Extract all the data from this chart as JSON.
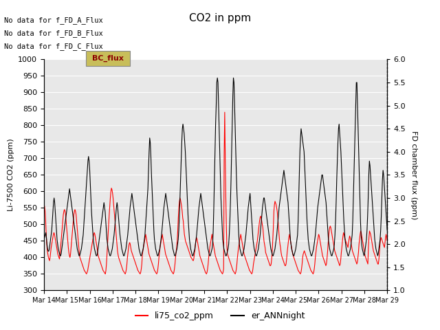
{
  "title": "CO2 in ppm",
  "ylabel_left": "Li-7500 CO2 (ppm)",
  "ylabel_right": "FD chamber flux (ppm)",
  "ylim_left": [
    300,
    1000
  ],
  "ylim_right": [
    1.0,
    6.0
  ],
  "background_color": "#e8e8e8",
  "no_data_texts": [
    "No data for f_FD_A_Flux",
    "No data for f_FD_B_Flux",
    "No data for f_FD_C_Flux"
  ],
  "legend_bc_label": "BC_flux",
  "legend_entries": [
    {
      "label": "li75_co2_ppm",
      "color": "red",
      "lw": 1.0
    },
    {
      "label": "er_ANNnight",
      "color": "black",
      "lw": 1.0
    }
  ],
  "xtick_labels": [
    "Mar 14",
    "Mar 15",
    "Mar 16",
    "Mar 17",
    "Mar 18",
    "Mar 19",
    "Mar 20",
    "Mar 21",
    "Mar 22",
    "Mar 23",
    "Mar 24",
    "Mar 25",
    "Mar 26",
    "Mar 27",
    "Mar 28",
    "Mar 29"
  ],
  "yticks_left": [
    300,
    350,
    400,
    450,
    500,
    550,
    600,
    650,
    700,
    750,
    800,
    850,
    900,
    950,
    1000
  ],
  "yticks_right": [
    1.0,
    1.5,
    2.0,
    2.5,
    3.0,
    3.5,
    4.0,
    4.5,
    5.0,
    5.5,
    6.0
  ],
  "red_x": [
    0,
    0.03,
    0.06,
    0.09,
    0.12,
    0.16,
    0.19,
    0.22,
    0.25,
    0.28,
    0.31,
    0.34,
    0.38,
    0.41,
    0.44,
    0.47,
    0.5,
    0.53,
    0.56,
    0.59,
    0.63,
    0.66,
    0.69,
    0.72,
    0.75,
    0.78,
    0.81,
    0.84,
    0.88,
    0.91,
    0.94,
    0.97,
    1.0,
    1.03,
    1.06,
    1.09,
    1.13,
    1.16,
    1.19,
    1.22,
    1.25,
    1.28,
    1.31,
    1.34,
    1.38,
    1.41,
    1.44,
    1.47,
    1.5,
    1.53,
    1.56,
    1.59,
    1.63,
    1.66,
    1.69,
    1.72,
    1.75,
    1.78,
    1.81,
    1.84,
    1.88,
    1.91,
    1.94,
    1.97,
    2.0,
    2.03,
    2.06,
    2.09,
    2.13,
    2.16,
    2.19,
    2.22,
    2.25,
    2.28,
    2.31,
    2.34,
    2.38,
    2.41,
    2.44,
    2.47,
    2.5,
    2.53,
    2.56,
    2.59,
    2.63,
    2.66,
    2.69,
    2.72,
    2.75,
    2.78,
    2.81,
    2.84,
    2.88,
    2.91,
    2.94,
    2.97,
    3.0,
    3.03,
    3.06,
    3.09,
    3.13,
    3.16,
    3.19,
    3.22,
    3.25,
    3.28,
    3.31,
    3.34,
    3.38,
    3.41,
    3.44,
    3.47,
    3.5,
    3.53,
    3.56,
    3.59,
    3.63,
    3.66,
    3.69,
    3.72,
    3.75,
    3.78,
    3.81,
    3.84,
    3.88,
    3.91,
    3.94,
    3.97,
    4.0,
    4.03,
    4.06,
    4.09,
    4.13,
    4.16,
    4.19,
    4.22,
    4.25,
    4.28,
    4.31,
    4.34,
    4.38,
    4.41,
    4.44,
    4.47,
    4.5,
    4.53,
    4.56,
    4.59,
    4.63,
    4.66,
    4.69,
    4.72,
    4.75,
    4.78,
    4.81,
    4.84,
    4.88,
    4.91,
    4.94,
    4.97,
    5.0,
    5.03,
    5.06,
    5.09,
    5.13,
    5.16,
    5.19,
    5.22,
    5.25,
    5.28,
    5.31,
    5.34,
    5.38,
    5.41,
    5.44,
    5.47,
    5.5,
    5.53,
    5.56,
    5.59,
    5.63,
    5.66,
    5.69,
    5.72,
    5.75,
    5.78,
    5.81,
    5.84,
    5.88,
    5.91,
    5.94,
    5.97,
    6.0,
    6.03,
    6.06,
    6.09,
    6.13,
    6.16,
    6.19,
    6.22,
    6.25,
    6.28,
    6.31,
    6.34,
    6.38,
    6.41,
    6.44,
    6.47,
    6.5,
    6.53,
    6.56,
    6.59,
    6.63,
    6.66,
    6.69,
    6.72,
    6.75,
    6.78,
    6.81,
    6.84,
    6.88,
    6.91,
    6.94,
    6.97,
    7.0,
    7.03,
    7.06,
    7.09,
    7.13,
    7.16,
    7.19,
    7.22,
    7.25,
    7.28,
    7.31,
    7.34,
    7.38,
    7.41,
    7.44,
    7.47,
    7.5,
    7.53,
    7.56,
    7.59,
    7.63,
    7.66,
    7.69,
    7.72,
    7.75,
    7.78,
    7.81,
    7.84,
    7.88,
    7.91,
    7.94,
    7.97,
    8.0,
    8.03,
    8.06,
    8.09,
    8.13,
    8.16,
    8.19,
    8.22,
    8.25,
    8.28,
    8.31,
    8.34,
    8.38,
    8.41,
    8.44,
    8.47,
    8.5,
    8.53,
    8.56,
    8.59,
    8.63,
    8.66,
    8.69,
    8.72,
    8.75,
    8.78,
    8.81,
    8.84,
    8.88,
    8.91,
    8.94,
    8.97,
    9.0,
    9.03,
    9.06,
    9.09,
    9.13,
    9.16,
    9.19,
    9.22,
    9.25,
    9.28,
    9.31,
    9.34,
    9.38,
    9.41,
    9.44,
    9.47,
    9.5,
    9.53,
    9.56,
    9.59,
    9.63,
    9.66,
    9.69,
    9.72,
    9.75,
    9.78,
    9.81,
    9.84,
    9.88,
    9.91,
    9.94,
    9.97,
    10.0,
    10.03,
    10.06,
    10.09,
    10.13,
    10.16,
    10.19,
    10.22,
    10.25,
    10.28,
    10.31,
    10.34,
    10.38,
    10.41,
    10.44,
    10.47,
    10.5,
    10.53,
    10.56,
    10.59,
    10.63,
    10.66,
    10.69,
    10.72,
    10.75,
    10.78,
    10.81,
    10.84,
    10.88,
    10.91,
    10.94,
    10.97,
    11.0,
    11.03,
    11.06,
    11.09,
    11.13,
    11.16,
    11.19,
    11.22,
    11.25,
    11.28,
    11.31,
    11.34,
    11.38,
    11.41,
    11.44,
    11.47,
    11.5,
    11.53,
    11.56,
    11.59,
    11.63,
    11.66,
    11.69,
    11.72,
    11.75,
    11.78,
    11.81,
    11.84,
    11.88,
    11.91,
    11.94,
    11.97,
    12.0,
    12.03,
    12.06,
    12.09,
    12.13,
    12.16,
    12.19,
    12.22,
    12.25,
    12.28,
    12.31,
    12.34,
    12.38,
    12.41,
    12.44,
    12.47,
    12.5,
    12.53,
    12.56,
    12.59,
    12.63,
    12.66,
    12.69,
    12.72,
    12.75,
    12.78,
    12.81,
    12.84,
    12.88,
    12.91,
    12.94,
    12.97,
    13.0,
    13.03,
    13.06,
    13.09,
    13.13,
    13.16,
    13.19,
    13.22,
    13.25,
    13.28,
    13.31,
    13.34,
    13.38,
    13.41,
    13.44,
    13.47,
    13.5,
    13.53,
    13.56,
    13.59,
    13.63,
    13.66,
    13.69,
    13.72,
    13.75,
    13.78,
    13.81,
    13.84,
    13.88,
    13.91,
    13.94,
    13.97,
    14.0,
    14.03,
    14.06,
    14.09,
    14.13,
    14.16,
    14.19,
    14.22,
    14.25,
    14.28,
    14.31,
    14.34,
    14.38,
    14.41,
    14.44,
    14.47,
    14.5,
    14.53,
    14.56,
    14.59,
    14.63,
    14.66,
    14.69,
    14.72,
    14.75,
    14.78,
    14.81,
    14.84,
    14.88,
    14.91,
    14.94,
    14.97,
    15.0
  ],
  "red_y": [
    560,
    555,
    540,
    510,
    470,
    440,
    420,
    410,
    400,
    395,
    390,
    400,
    415,
    430,
    440,
    450,
    460,
    470,
    475,
    470,
    460,
    450,
    440,
    430,
    420,
    410,
    405,
    400,
    395,
    410,
    430,
    450,
    470,
    490,
    510,
    530,
    540,
    545,
    540,
    530,
    510,
    490,
    470,
    450,
    430,
    415,
    405,
    400,
    410,
    430,
    450,
    470,
    490,
    510,
    530,
    540,
    545,
    540,
    530,
    510,
    490,
    470,
    450,
    430,
    410,
    400,
    395,
    390,
    385,
    380,
    375,
    370,
    365,
    360,
    358,
    355,
    352,
    350,
    355,
    360,
    370,
    380,
    390,
    400,
    410,
    420,
    430,
    440,
    450,
    460,
    470,
    475,
    470,
    460,
    450,
    440,
    430,
    415,
    405,
    400,
    395,
    390,
    385,
    380,
    375,
    370,
    365,
    360,
    358,
    355,
    352,
    350,
    360,
    380,
    410,
    440,
    470,
    500,
    530,
    555,
    580,
    600,
    610,
    605,
    595,
    580,
    560,
    540,
    520,
    500,
    480,
    460,
    440,
    420,
    408,
    400,
    395,
    390,
    385,
    380,
    375,
    370,
    365,
    360,
    358,
    355,
    352,
    350,
    355,
    365,
    380,
    400,
    415,
    430,
    440,
    445,
    440,
    430,
    420,
    415,
    410,
    405,
    400,
    395,
    390,
    385,
    380,
    375,
    370,
    365,
    360,
    358,
    355,
    352,
    350,
    355,
    365,
    380,
    410,
    420,
    430,
    440,
    450,
    460,
    470,
    460,
    450,
    440,
    430,
    420,
    410,
    405,
    400,
    395,
    390,
    385,
    380,
    375,
    370,
    365,
    360,
    358,
    355,
    352,
    350,
    355,
    365,
    380,
    400,
    415,
    430,
    440,
    450,
    460,
    470,
    460,
    450,
    440,
    430,
    420,
    410,
    405,
    400,
    395,
    390,
    385,
    380,
    375,
    370,
    365,
    360,
    358,
    355,
    352,
    350,
    355,
    365,
    380,
    400,
    415,
    430,
    450,
    480,
    520,
    550,
    570,
    580,
    575,
    565,
    555,
    540,
    520,
    510,
    490,
    470,
    460,
    450,
    445,
    440,
    435,
    430,
    425,
    420,
    415,
    410,
    405,
    400,
    398,
    395,
    392,
    390,
    395,
    410,
    420,
    440,
    450,
    460,
    455,
    445,
    435,
    425,
    415,
    405,
    400,
    395,
    390,
    385,
    380,
    375,
    370,
    365,
    360,
    355,
    352,
    350,
    355,
    365,
    380,
    400,
    415,
    430,
    440,
    450,
    460,
    470,
    455,
    445,
    435,
    425,
    415,
    405,
    400,
    395,
    390,
    385,
    380,
    375,
    370,
    365,
    360,
    358,
    355,
    352,
    350,
    355,
    365,
    710,
    840,
    700,
    580,
    490,
    430,
    410,
    405,
    400,
    395,
    390,
    385,
    380,
    375,
    370,
    365,
    360,
    358,
    355,
    352,
    350,
    355,
    365,
    380,
    400,
    415,
    430,
    440,
    450,
    460,
    470,
    460,
    450,
    440,
    430,
    420,
    410,
    405,
    400,
    395,
    390,
    385,
    380,
    375,
    370,
    365,
    360,
    358,
    355,
    352,
    350,
    355,
    365,
    380,
    390,
    400,
    410,
    420,
    430,
    440,
    450,
    465,
    480,
    495,
    510,
    520,
    525,
    520,
    510,
    500,
    490,
    470,
    450,
    440,
    430,
    415,
    410,
    405,
    400,
    395,
    390,
    385,
    380,
    375,
    375,
    380,
    395,
    420,
    455,
    490,
    540,
    560,
    570,
    565,
    560,
    550,
    540,
    520,
    500,
    475,
    455,
    440,
    430,
    415,
    405,
    400,
    395,
    390,
    385,
    380,
    375,
    375,
    380,
    395,
    415,
    430,
    445,
    460,
    470,
    460,
    450,
    440,
    430,
    420,
    410,
    405,
    400,
    395,
    390,
    385,
    380,
    375,
    370,
    365,
    360,
    358,
    355,
    352,
    350,
    355,
    365,
    380,
    400,
    410,
    415,
    420,
    415,
    410,
    405,
    400,
    395,
    390,
    385,
    380,
    375,
    370,
    365,
    360,
    358,
    355,
    352,
    350,
    355,
    365,
    380,
    400,
    415,
    430,
    440,
    450,
    460,
    470,
    465,
    455,
    445,
    435,
    425,
    415,
    405,
    400,
    395,
    390,
    385,
    380,
    375,
    380,
    395,
    415,
    440,
    460,
    480,
    490,
    495,
    490,
    480,
    470,
    460,
    450,
    440,
    430,
    420,
    415,
    410,
    405,
    400,
    395,
    390,
    385,
    380,
    375,
    380,
    395,
    415,
    430,
    450,
    465,
    475,
    470,
    460,
    455,
    450,
    445,
    440,
    435,
    430,
    445,
    455,
    465,
    460,
    450,
    440,
    430,
    420,
    415,
    410,
    405,
    400,
    395,
    390,
    385,
    380,
    385,
    400,
    415,
    440,
    455,
    470,
    480,
    475,
    465,
    455,
    445,
    435,
    425,
    415,
    405,
    400,
    395,
    390,
    385,
    380,
    430,
    460,
    480,
    475,
    470,
    460,
    450,
    440,
    430,
    420,
    415,
    410,
    405,
    400,
    395,
    390,
    385,
    380,
    380,
    395,
    415,
    440,
    455,
    460,
    455,
    450,
    445,
    440,
    435,
    430,
    445,
    460,
    470,
    460,
    450
  ],
  "black_y": [
    2.1,
    2.15,
    2.2,
    2.25,
    2.15,
    2.0,
    1.9,
    1.85,
    1.85,
    1.9,
    2.0,
    2.1,
    2.2,
    2.3,
    2.5,
    2.7,
    2.9,
    3.0,
    2.9,
    2.7,
    2.5,
    2.3,
    2.1,
    2.0,
    1.9,
    1.85,
    1.8,
    1.75,
    1.75,
    1.8,
    1.9,
    2.0,
    2.1,
    2.2,
    2.3,
    2.4,
    2.5,
    2.6,
    2.7,
    2.8,
    2.9,
    3.0,
    3.1,
    3.2,
    3.1,
    3.0,
    2.9,
    2.8,
    2.7,
    2.6,
    2.5,
    2.4,
    2.3,
    2.2,
    2.1,
    2.0,
    1.9,
    1.85,
    1.8,
    1.75,
    1.75,
    1.8,
    1.85,
    1.9,
    2.0,
    2.1,
    2.2,
    2.4,
    2.6,
    2.8,
    3.0,
    3.2,
    3.4,
    3.6,
    3.8,
    3.9,
    3.8,
    3.6,
    3.3,
    3.0,
    2.7,
    2.5,
    2.3,
    2.1,
    2.0,
    1.9,
    1.85,
    1.8,
    1.75,
    1.75,
    1.8,
    1.9,
    2.0,
    2.1,
    2.2,
    2.3,
    2.4,
    2.5,
    2.6,
    2.7,
    2.8,
    2.9,
    2.8,
    2.7,
    2.5,
    2.3,
    2.1,
    2.0,
    1.9,
    1.85,
    1.8,
    1.75,
    1.75,
    1.8,
    1.85,
    1.9,
    2.0,
    2.1,
    2.2,
    2.35,
    2.5,
    2.65,
    2.8,
    2.9,
    2.8,
    2.65,
    2.5,
    2.35,
    2.2,
    2.1,
    2.0,
    1.9,
    1.85,
    1.8,
    1.75,
    1.75,
    1.8,
    1.85,
    1.9,
    2.0,
    2.1,
    2.2,
    2.35,
    2.5,
    2.65,
    2.8,
    2.9,
    3.0,
    3.1,
    3.0,
    2.9,
    2.8,
    2.7,
    2.6,
    2.5,
    2.4,
    2.3,
    2.2,
    2.1,
    2.0,
    1.9,
    1.85,
    1.8,
    1.75,
    1.75,
    1.8,
    1.85,
    1.9,
    2.0,
    2.1,
    2.2,
    2.4,
    2.6,
    2.8,
    3.0,
    3.2,
    3.6,
    4.0,
    4.3,
    4.2,
    3.9,
    3.5,
    3.2,
    2.9,
    2.6,
    2.3,
    2.1,
    2.0,
    1.9,
    1.85,
    1.8,
    1.75,
    1.75,
    1.8,
    1.85,
    1.9,
    2.0,
    2.1,
    2.2,
    2.35,
    2.5,
    2.65,
    2.8,
    2.9,
    3.0,
    3.1,
    3.0,
    2.9,
    2.8,
    2.7,
    2.6,
    2.5,
    2.4,
    2.3,
    2.2,
    2.1,
    2.0,
    1.9,
    1.85,
    1.8,
    1.75,
    1.75,
    1.8,
    1.85,
    1.9,
    2.0,
    2.1,
    2.3,
    2.6,
    3.0,
    3.4,
    3.8,
    4.2,
    4.5,
    4.6,
    4.5,
    4.4,
    4.2,
    4.0,
    3.7,
    3.4,
    3.1,
    2.8,
    2.5,
    2.3,
    2.1,
    2.0,
    1.9,
    1.85,
    1.8,
    1.75,
    1.75,
    1.8,
    1.85,
    1.9,
    2.0,
    2.1,
    2.2,
    2.35,
    2.5,
    2.65,
    2.8,
    2.9,
    3.0,
    3.1,
    3.0,
    2.9,
    2.8,
    2.7,
    2.6,
    2.5,
    2.4,
    2.3,
    2.2,
    2.1,
    2.0,
    1.9,
    1.85,
    1.8,
    1.75,
    1.75,
    1.8,
    1.85,
    1.9,
    2.0,
    2.3,
    2.8,
    3.4,
    4.0,
    4.6,
    5.0,
    5.5,
    5.6,
    5.5,
    5.0,
    4.5,
    4.0,
    3.5,
    3.0,
    2.7,
    2.4,
    2.1,
    2.0,
    1.9,
    1.85,
    1.8,
    1.75,
    1.75,
    1.8,
    1.85,
    1.9,
    2.0,
    2.2,
    2.5,
    2.9,
    3.4,
    4.0,
    4.6,
    5.2,
    5.6,
    5.5,
    5.0,
    4.5,
    4.0,
    3.5,
    3.1,
    2.8,
    2.5,
    2.2,
    2.0,
    1.9,
    1.85,
    1.8,
    1.75,
    1.75,
    1.8,
    1.85,
    1.9,
    2.0,
    2.1,
    2.2,
    2.35,
    2.5,
    2.65,
    2.8,
    2.9,
    3.0,
    3.1,
    2.9,
    2.7,
    2.5,
    2.3,
    2.1,
    2.0,
    1.9,
    1.85,
    1.8,
    1.75,
    1.75,
    1.8,
    1.85,
    1.9,
    2.0,
    2.1,
    2.2,
    2.35,
    2.5,
    2.65,
    2.8,
    2.9,
    3.0,
    3.0,
    2.9,
    2.8,
    2.7,
    2.6,
    2.5,
    2.4,
    2.3,
    2.2,
    2.1,
    2.0,
    1.9,
    1.85,
    1.8,
    1.75,
    1.75,
    1.8,
    1.85,
    1.9,
    2.0,
    2.1,
    2.2,
    2.35,
    2.5,
    2.65,
    2.8,
    2.9,
    3.0,
    3.1,
    3.2,
    3.3,
    3.4,
    3.5,
    3.6,
    3.5,
    3.4,
    3.3,
    3.2,
    3.1,
    3.0,
    2.9,
    2.7,
    2.5,
    2.3,
    2.1,
    2.0,
    1.9,
    1.85,
    1.8,
    1.75,
    1.75,
    1.8,
    1.85,
    1.9,
    2.0,
    2.1,
    2.2,
    2.5,
    3.0,
    3.5,
    4.0,
    4.3,
    4.5,
    4.4,
    4.3,
    4.2,
    4.1,
    4.0,
    3.7,
    3.4,
    3.1,
    2.8,
    2.5,
    2.3,
    2.1,
    2.0,
    1.9,
    1.85,
    1.8,
    1.75,
    1.75,
    1.8,
    1.85,
    1.9,
    2.0,
    2.1,
    2.2,
    2.35,
    2.5,
    2.65,
    2.8,
    2.9,
    3.0,
    3.1,
    3.2,
    3.3,
    3.4,
    3.5,
    3.5,
    3.4,
    3.3,
    3.2,
    3.1,
    3.0,
    2.9,
    2.7,
    2.5,
    2.3,
    2.1,
    2.0,
    1.9,
    1.85,
    1.8,
    1.75,
    1.75,
    1.8,
    1.85,
    1.9,
    2.0,
    2.2,
    2.5,
    2.9,
    3.4,
    3.8,
    4.2,
    4.5,
    4.6,
    4.4,
    4.2,
    4.0,
    3.7,
    3.4,
    3.1,
    2.8,
    2.5,
    2.3,
    2.1,
    2.0,
    1.9,
    1.85,
    1.8,
    1.75,
    1.75,
    1.8,
    1.85,
    1.9,
    2.0,
    2.1,
    2.2,
    2.5,
    3.0,
    3.5,
    4.0,
    4.5,
    5.0,
    5.5,
    5.5,
    5.0,
    4.5,
    4.0,
    3.5,
    3.0,
    2.5,
    2.2,
    2.0,
    1.9,
    1.85,
    1.8,
    1.75,
    1.8,
    1.9,
    2.0,
    2.1,
    2.3,
    2.6,
    3.0,
    3.5,
    3.8,
    3.7,
    3.5,
    3.3,
    3.1,
    2.9,
    2.7,
    2.5,
    2.3,
    2.1,
    2.0,
    1.9,
    1.85,
    1.8,
    1.75,
    1.8,
    1.9,
    2.0,
    2.1,
    2.3,
    2.6,
    3.0,
    3.4,
    3.6,
    3.5,
    3.3,
    3.1,
    2.9,
    2.7,
    2.5,
    2.3
  ]
}
